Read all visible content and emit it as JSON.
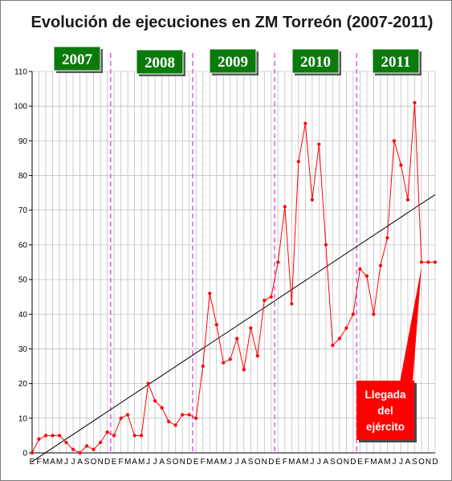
{
  "chart_data": {
    "type": "line",
    "title": "Evolución de ejecuciones en ZM Torreón (2007-2011)",
    "xlabel": "",
    "ylabel": "",
    "ylim": [
      0,
      110
    ],
    "yticks": [
      0,
      10,
      20,
      30,
      40,
      50,
      60,
      70,
      80,
      90,
      100,
      110
    ],
    "grid": true,
    "legend": "none",
    "years": [
      "2007",
      "2008",
      "2009",
      "2010",
      "2011"
    ],
    "month_labels": [
      "E",
      "F",
      "M",
      "A",
      "M",
      "J",
      "J",
      "A",
      "S",
      "O",
      "N",
      "D"
    ],
    "series": [
      {
        "values": [
          0,
          4,
          5,
          5,
          5,
          3,
          1,
          0,
          2,
          1,
          3,
          6,
          5,
          10,
          11,
          5,
          5,
          20,
          15,
          13,
          9,
          8,
          11,
          11,
          10,
          25,
          46,
          37,
          26,
          27,
          33,
          24,
          36,
          28,
          44,
          45,
          55,
          71,
          43,
          84,
          95,
          73,
          89,
          60,
          31,
          33,
          36,
          40,
          53,
          51,
          40,
          54,
          62,
          90,
          83,
          73,
          101,
          55,
          55,
          55
        ],
        "color": "#ff0000"
      }
    ],
    "trendline": {
      "start": -2.5,
      "end": 74.5,
      "color": "#000000"
    },
    "annotation": {
      "lines": [
        "Llegada",
        "del",
        "ejército"
      ],
      "points_to_index": 57
    },
    "colors": {
      "year_box": "#0a7a0a",
      "divider": "#e040e0",
      "callout": "#ff0000",
      "grid": "#c0c0c0"
    }
  }
}
